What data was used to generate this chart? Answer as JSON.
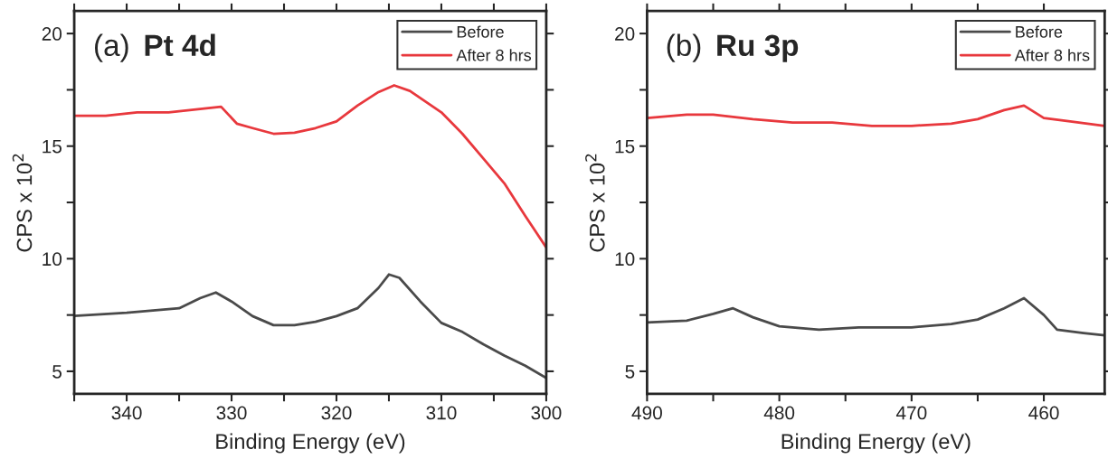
{
  "chart_data": [
    {
      "type": "line",
      "title": "(a) Pt 4d",
      "xlabel": "Binding Energy (eV)",
      "ylabel": "CPS x 10$^{2}$",
      "xlim": [
        345,
        300
      ],
      "ylim": [
        4,
        21
      ],
      "xticks": [
        {
          "value": 345,
          "label": null
        },
        340,
        {
          "value": 335,
          "label": null
        },
        330,
        {
          "value": 325,
          "label": null
        },
        320,
        {
          "value": 315,
          "label": null
        },
        310,
        {
          "value": 305,
          "label": null
        },
        300
      ],
      "yticks": [
        5,
        {
          "value": 7.5,
          "label": null
        },
        10,
        {
          "value": 12.5,
          "label": null
        },
        15,
        {
          "value": 17.5,
          "label": null
        },
        20
      ],
      "legend": "top right",
      "grid": false,
      "series": [
        {
          "name": "Before",
          "color": "#4a4a4a",
          "x": [
            345,
            340,
            335,
            333,
            331.5,
            330,
            328,
            326,
            324,
            322,
            320,
            318,
            316,
            315,
            314,
            312,
            310,
            308,
            306,
            304,
            302,
            300
          ],
          "values": [
            7.46,
            7.6,
            7.8,
            8.25,
            8.5,
            8.1,
            7.45,
            7.05,
            7.05,
            7.2,
            7.45,
            7.8,
            8.7,
            9.3,
            9.15,
            8.1,
            7.15,
            6.75,
            6.2,
            5.7,
            5.25,
            4.7
          ]
        },
        {
          "name": "After 8 hrs",
          "color": "#e8383d",
          "x": [
            345,
            342,
            339,
            336,
            333,
            331,
            329.5,
            328,
            326,
            324,
            322,
            320,
            318,
            316,
            314.5,
            313,
            310,
            308,
            306,
            304,
            302,
            300
          ],
          "values": [
            16.35,
            16.35,
            16.5,
            16.5,
            16.65,
            16.75,
            16.0,
            15.8,
            15.55,
            15.6,
            15.8,
            16.1,
            16.8,
            17.4,
            17.7,
            17.45,
            16.5,
            15.55,
            14.45,
            13.35,
            11.9,
            10.5
          ]
        }
      ]
    },
    {
      "type": "line",
      "title": "(b) Ru 3p",
      "xlabel": "Binding Energy (eV)",
      "ylabel": "CPS x 10$^{2}$",
      "xlim": [
        490,
        455.4
      ],
      "ylim": [
        4,
        21
      ],
      "xticks": [
        490,
        {
          "value": 485,
          "label": null
        },
        480,
        {
          "value": 475,
          "label": null
        },
        470,
        {
          "value": 465,
          "label": null
        },
        460
      ],
      "yticks": [
        5,
        {
          "value": 7.5,
          "label": null
        },
        10,
        {
          "value": 12.5,
          "label": null
        },
        15,
        {
          "value": 17.5,
          "label": null
        },
        20
      ],
      "legend": "top right",
      "grid": false,
      "series": [
        {
          "name": "Before",
          "color": "#4a4a4a",
          "x": [
            490,
            487,
            485,
            483.5,
            482,
            480,
            477,
            474,
            470,
            467,
            465,
            463,
            461.5,
            460,
            459,
            457,
            455.4
          ],
          "values": [
            7.17,
            7.25,
            7.55,
            7.8,
            7.4,
            7.0,
            6.85,
            6.95,
            6.95,
            7.1,
            7.3,
            7.8,
            8.25,
            7.5,
            6.85,
            6.7,
            6.6
          ]
        },
        {
          "name": "After 8 hrs",
          "color": "#e8383d",
          "x": [
            490,
            487,
            485,
            482,
            479,
            476,
            473,
            470,
            467,
            465,
            463,
            461.5,
            460,
            458,
            455.4
          ],
          "values": [
            16.25,
            16.4,
            16.4,
            16.2,
            16.05,
            16.05,
            15.9,
            15.9,
            16.0,
            16.2,
            16.6,
            16.8,
            16.25,
            16.1,
            15.9
          ]
        }
      ]
    }
  ]
}
